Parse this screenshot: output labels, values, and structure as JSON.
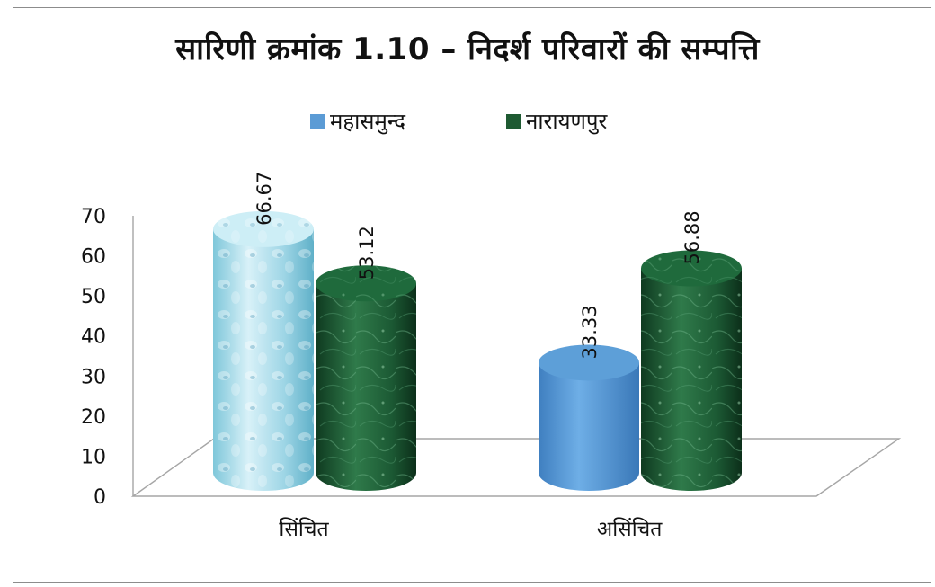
{
  "chart_data": {
    "type": "bar",
    "title": "सारिणी क्रमांक 1.10 – निदर्श परिवारों की सम्पत्ति",
    "categories": [
      "सिंचित",
      "असिंचित"
    ],
    "series": [
      {
        "name": "महासमुन्द",
        "values": [
          66.67,
          33.33
        ],
        "color": "#5b9bd5"
      },
      {
        "name": "नारायणपुर",
        "values": [
          53.12,
          56.88
        ],
        "color": "#1e5a32"
      }
    ],
    "ylim": [
      0,
      70
    ],
    "yticks": [
      0,
      10,
      20,
      30,
      40,
      50,
      60,
      70
    ],
    "xlabel": "",
    "ylabel": "",
    "legend": "top",
    "grid": false
  }
}
